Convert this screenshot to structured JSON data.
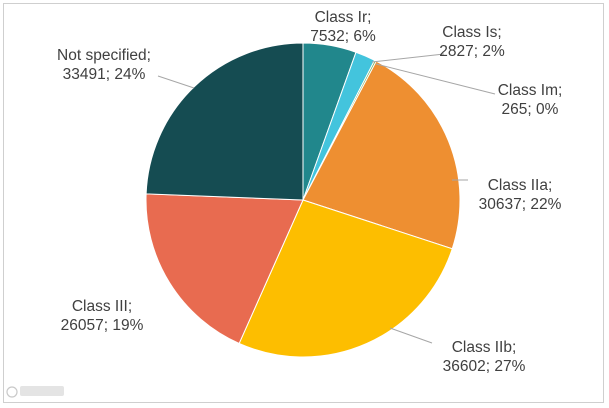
{
  "chart_data": {
    "type": "pie",
    "title": "",
    "slices": [
      {
        "name": "Class Ir",
        "value": 7532,
        "percent": "6%",
        "color": "#21878C"
      },
      {
        "name": "Class Is",
        "value": 2827,
        "percent": "2%",
        "color": "#43C4DD"
      },
      {
        "name": "Class Im",
        "value": 265,
        "percent": "0%",
        "color": "#74B05A"
      },
      {
        "name": "Class IIa",
        "value": 30637,
        "percent": "22%",
        "color": "#EE8F31"
      },
      {
        "name": "Class IIb",
        "value": 36602,
        "percent": "27%",
        "color": "#FDBE00"
      },
      {
        "name": "Class III",
        "value": 26057,
        "percent": "19%",
        "color": "#E86B50"
      },
      {
        "name": "Not specified",
        "value": 33491,
        "percent": "24%",
        "color": "#154C52"
      }
    ],
    "label_lines": [
      [
        "Class Ir;",
        "7532; 6%"
      ],
      [
        "Class Is;",
        "2827; 2%"
      ],
      [
        "Class Im;",
        "265; 0%"
      ],
      [
        "Class IIa;",
        "30637; 22%"
      ],
      [
        "Class IIb;",
        "36602; 27%"
      ],
      [
        "Class III;",
        "26057; 19%"
      ],
      [
        "Not specified;",
        "33491; 24%"
      ]
    ]
  }
}
